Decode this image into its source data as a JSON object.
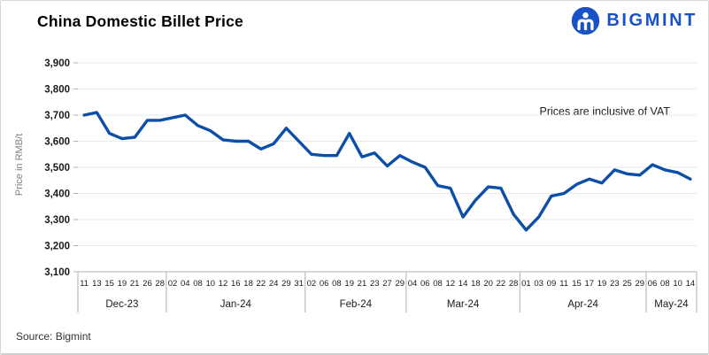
{
  "header": {
    "title": "China Domestic Billet Price",
    "logo_text": "BIGMINT",
    "logo_color": "#1a52c6"
  },
  "annotation": "Prices are inclusive of VAT",
  "footer": {
    "source": "Source: Bigmint"
  },
  "chart_data": {
    "type": "line",
    "title": "China Domestic Billet Price",
    "xlabel": "",
    "ylabel": "Price in RMB/t",
    "ylim": [
      3100,
      3900
    ],
    "grid": true,
    "legend": false,
    "line_color": "#0d4fa7",
    "grid_color": "#e9e9e9",
    "axis_color": "#b0b0b0",
    "tick_text_color": "#1a1a1a",
    "yticks": [
      {
        "label": "3,900",
        "value": 3900
      },
      {
        "label": "3,800",
        "value": 3800
      },
      {
        "label": "3,700",
        "value": 3700
      },
      {
        "label": "3,600",
        "value": 3600
      },
      {
        "label": "3,500",
        "value": 3500
      },
      {
        "label": "3,400",
        "value": 3400
      },
      {
        "label": "3,300",
        "value": 3300
      },
      {
        "label": "3,200",
        "value": 3200
      },
      {
        "label": "3,100",
        "value": 3100
      }
    ],
    "points": [
      {
        "month": "Dec-23",
        "day": "11",
        "value": 3700
      },
      {
        "month": "Dec-23",
        "day": "13",
        "value": 3710
      },
      {
        "month": "Dec-23",
        "day": "15",
        "value": 3630
      },
      {
        "month": "Dec-23",
        "day": "19",
        "value": 3610
      },
      {
        "month": "Dec-23",
        "day": "21",
        "value": 3615
      },
      {
        "month": "Dec-23",
        "day": "26",
        "value": 3680
      },
      {
        "month": "Dec-23",
        "day": "28",
        "value": 3680
      },
      {
        "month": "Jan-24",
        "day": "02",
        "value": 3690
      },
      {
        "month": "Jan-24",
        "day": "04",
        "value": 3700
      },
      {
        "month": "Jan-24",
        "day": "08",
        "value": 3660
      },
      {
        "month": "Jan-24",
        "day": "10",
        "value": 3640
      },
      {
        "month": "Jan-24",
        "day": "12",
        "value": 3605
      },
      {
        "month": "Jan-24",
        "day": "16",
        "value": 3600
      },
      {
        "month": "Jan-24",
        "day": "18",
        "value": 3600
      },
      {
        "month": "Jan-24",
        "day": "22",
        "value": 3570
      },
      {
        "month": "Jan-24",
        "day": "24",
        "value": 3590
      },
      {
        "month": "Jan-24",
        "day": "29",
        "value": 3650
      },
      {
        "month": "Jan-24",
        "day": "31",
        "value": 3600
      },
      {
        "month": "Feb-24",
        "day": "02",
        "value": 3550
      },
      {
        "month": "Feb-24",
        "day": "06",
        "value": 3545
      },
      {
        "month": "Feb-24",
        "day": "08",
        "value": 3545
      },
      {
        "month": "Feb-24",
        "day": "19",
        "value": 3630
      },
      {
        "month": "Feb-24",
        "day": "21",
        "value": 3540
      },
      {
        "month": "Feb-24",
        "day": "23",
        "value": 3555
      },
      {
        "month": "Feb-24",
        "day": "27",
        "value": 3505
      },
      {
        "month": "Feb-24",
        "day": "29",
        "value": 3545
      },
      {
        "month": "Mar-24",
        "day": "04",
        "value": 3520
      },
      {
        "month": "Mar-24",
        "day": "06",
        "value": 3500
      },
      {
        "month": "Mar-24",
        "day": "08",
        "value": 3430
      },
      {
        "month": "Mar-24",
        "day": "12",
        "value": 3420
      },
      {
        "month": "Mar-24",
        "day": "14",
        "value": 3310
      },
      {
        "month": "Mar-24",
        "day": "18",
        "value": 3375
      },
      {
        "month": "Mar-24",
        "day": "20",
        "value": 3425
      },
      {
        "month": "Mar-24",
        "day": "22",
        "value": 3420
      },
      {
        "month": "Mar-24",
        "day": "28",
        "value": 3320
      },
      {
        "month": "Apr-24",
        "day": "01",
        "value": 3260
      },
      {
        "month": "Apr-24",
        "day": "03",
        "value": 3310
      },
      {
        "month": "Apr-24",
        "day": "09",
        "value": 3390
      },
      {
        "month": "Apr-24",
        "day": "11",
        "value": 3400
      },
      {
        "month": "Apr-24",
        "day": "15",
        "value": 3435
      },
      {
        "month": "Apr-24",
        "day": "17",
        "value": 3455
      },
      {
        "month": "Apr-24",
        "day": "19",
        "value": 3440
      },
      {
        "month": "Apr-24",
        "day": "23",
        "value": 3490
      },
      {
        "month": "Apr-24",
        "day": "25",
        "value": 3475
      },
      {
        "month": "Apr-24",
        "day": "29",
        "value": 3470
      },
      {
        "month": "May-24",
        "day": "06",
        "value": 3510
      },
      {
        "month": "May-24",
        "day": "08",
        "value": 3490
      },
      {
        "month": "May-24",
        "day": "10",
        "value": 3480
      },
      {
        "month": "May-24",
        "day": "14",
        "value": 3455
      }
    ]
  }
}
